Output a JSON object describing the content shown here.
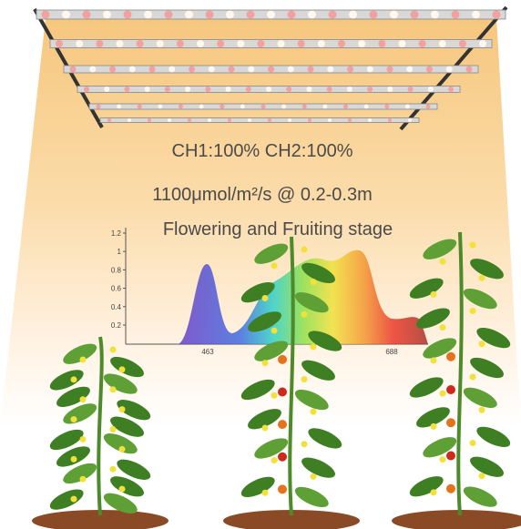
{
  "header": {
    "lines": [
      "CH1:100% CH2:100%",
      "1100μmol/m²/s @ 0.2-0.3m",
      "Flowering and Fruiting stage"
    ]
  },
  "spectrum": {
    "y_ticks": [
      "1.2",
      "1",
      "0.8",
      "0.6",
      "0.4",
      "0.2"
    ],
    "x_ticks": [
      "463",
      "688"
    ]
  }
}
